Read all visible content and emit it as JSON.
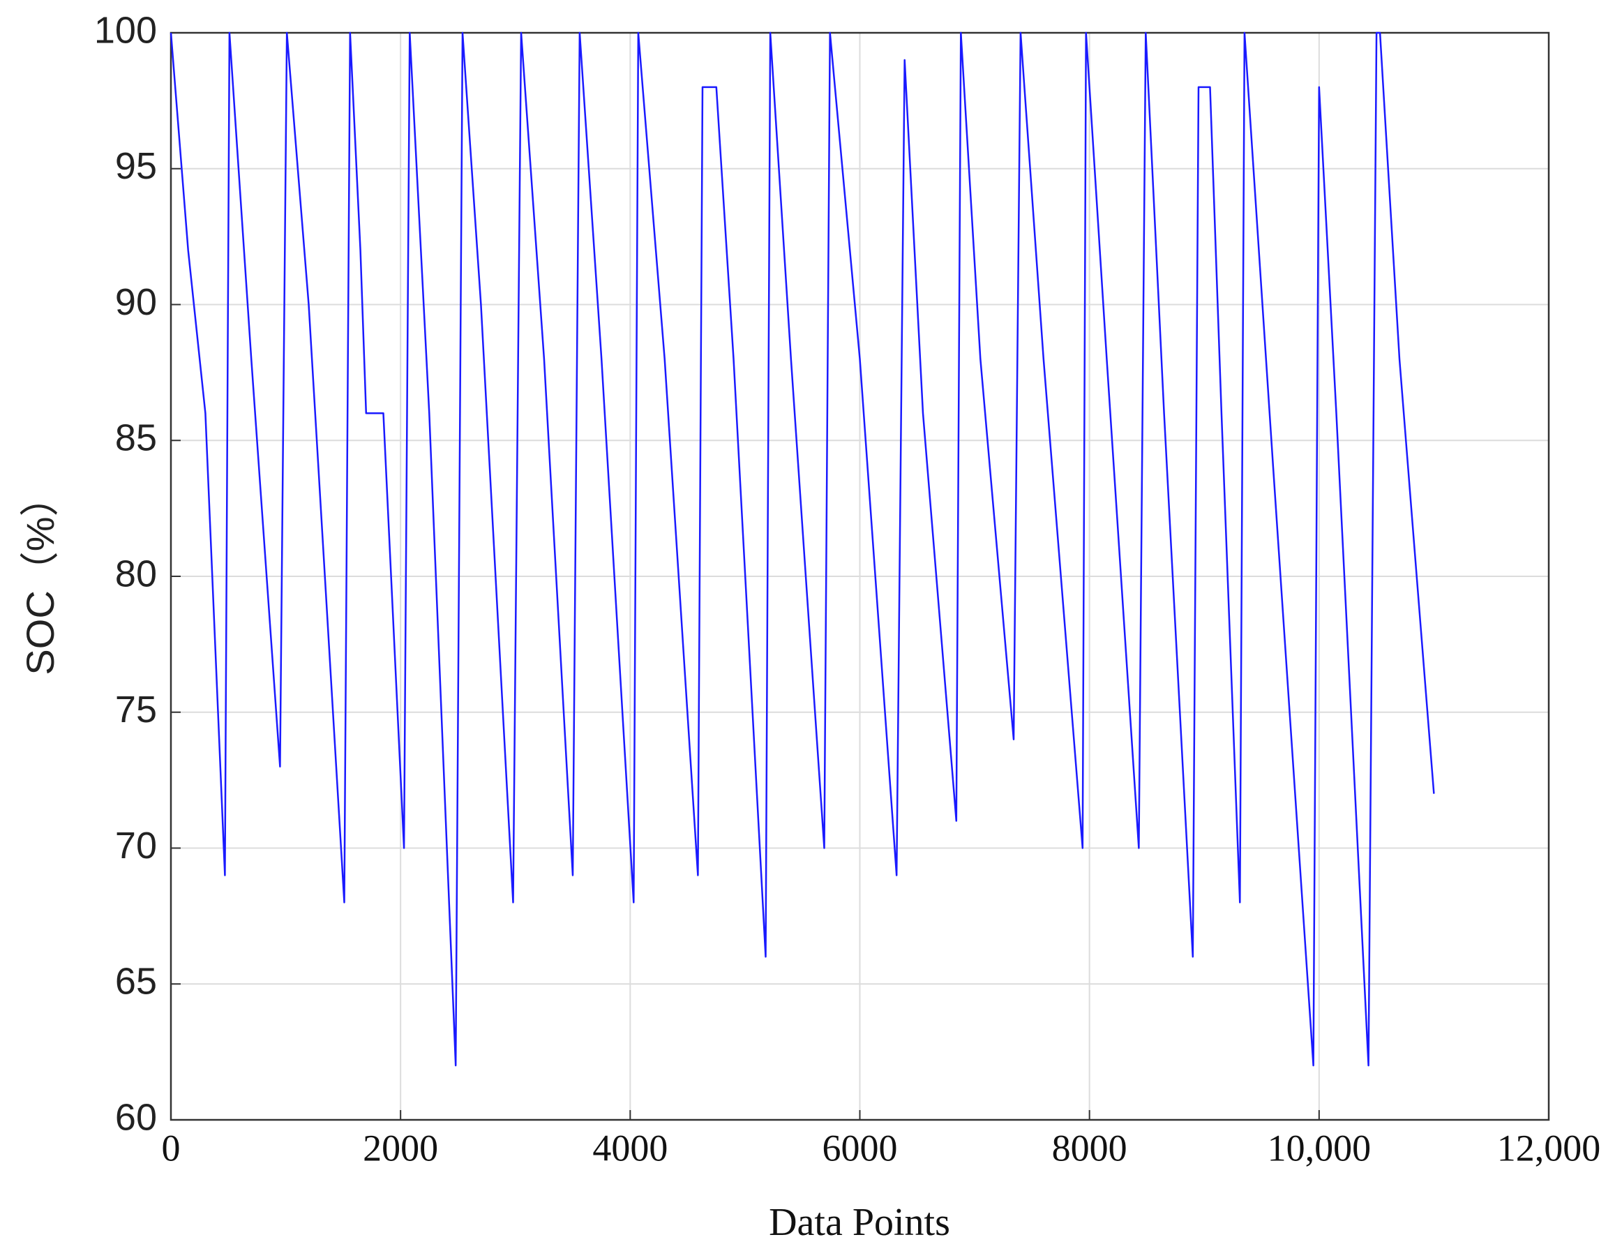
{
  "chart_data": {
    "type": "line",
    "x_label": "Data Points",
    "y_label": "SOC（%）",
    "xlim": [
      0,
      12000
    ],
    "ylim": [
      60,
      100
    ],
    "xticks": [
      0,
      2000,
      4000,
      6000,
      8000,
      {
        "value": 10000,
        "label": "10,000"
      },
      {
        "value": 12000,
        "label": "12,000"
      }
    ],
    "yticks": [
      60,
      65,
      70,
      75,
      80,
      85,
      90,
      95,
      100
    ],
    "grid": true,
    "series": [
      {
        "name": "SOC",
        "color": "#1a1aff",
        "x": [
          0,
          150,
          300,
          470,
          510,
          700,
          950,
          1010,
          1200,
          1510,
          1560,
          1650,
          1700,
          1850,
          2030,
          2080,
          2250,
          2480,
          2540,
          2700,
          2980,
          3050,
          3250,
          3500,
          3560,
          3750,
          4030,
          4070,
          4300,
          4590,
          4630,
          4750,
          4900,
          5180,
          5220,
          5400,
          5690,
          5740,
          6000,
          6320,
          6390,
          6550,
          6840,
          6880,
          7050,
          7340,
          7400,
          7600,
          7940,
          7970,
          8150,
          8430,
          8490,
          8650,
          8900,
          8950,
          9050,
          9150,
          9310,
          9350,
          9600,
          9950,
          10000,
          10150,
          10430,
          10500,
          10530,
          10700,
          11000
        ],
        "values": [
          100,
          92,
          86,
          69,
          100,
          88,
          73,
          100,
          90,
          68,
          100,
          92,
          86,
          86,
          70,
          100,
          86,
          62,
          100,
          90,
          68,
          100,
          88,
          69,
          100,
          88,
          68,
          100,
          88,
          69,
          98,
          98,
          88,
          66,
          100,
          88,
          70,
          100,
          88,
          69,
          99,
          86,
          71,
          100,
          88,
          74,
          100,
          88,
          70,
          100,
          88,
          70,
          100,
          86,
          66,
          98,
          98,
          86,
          68,
          100,
          84,
          62,
          98,
          86,
          62,
          100,
          100,
          88,
          72
        ]
      }
    ]
  }
}
